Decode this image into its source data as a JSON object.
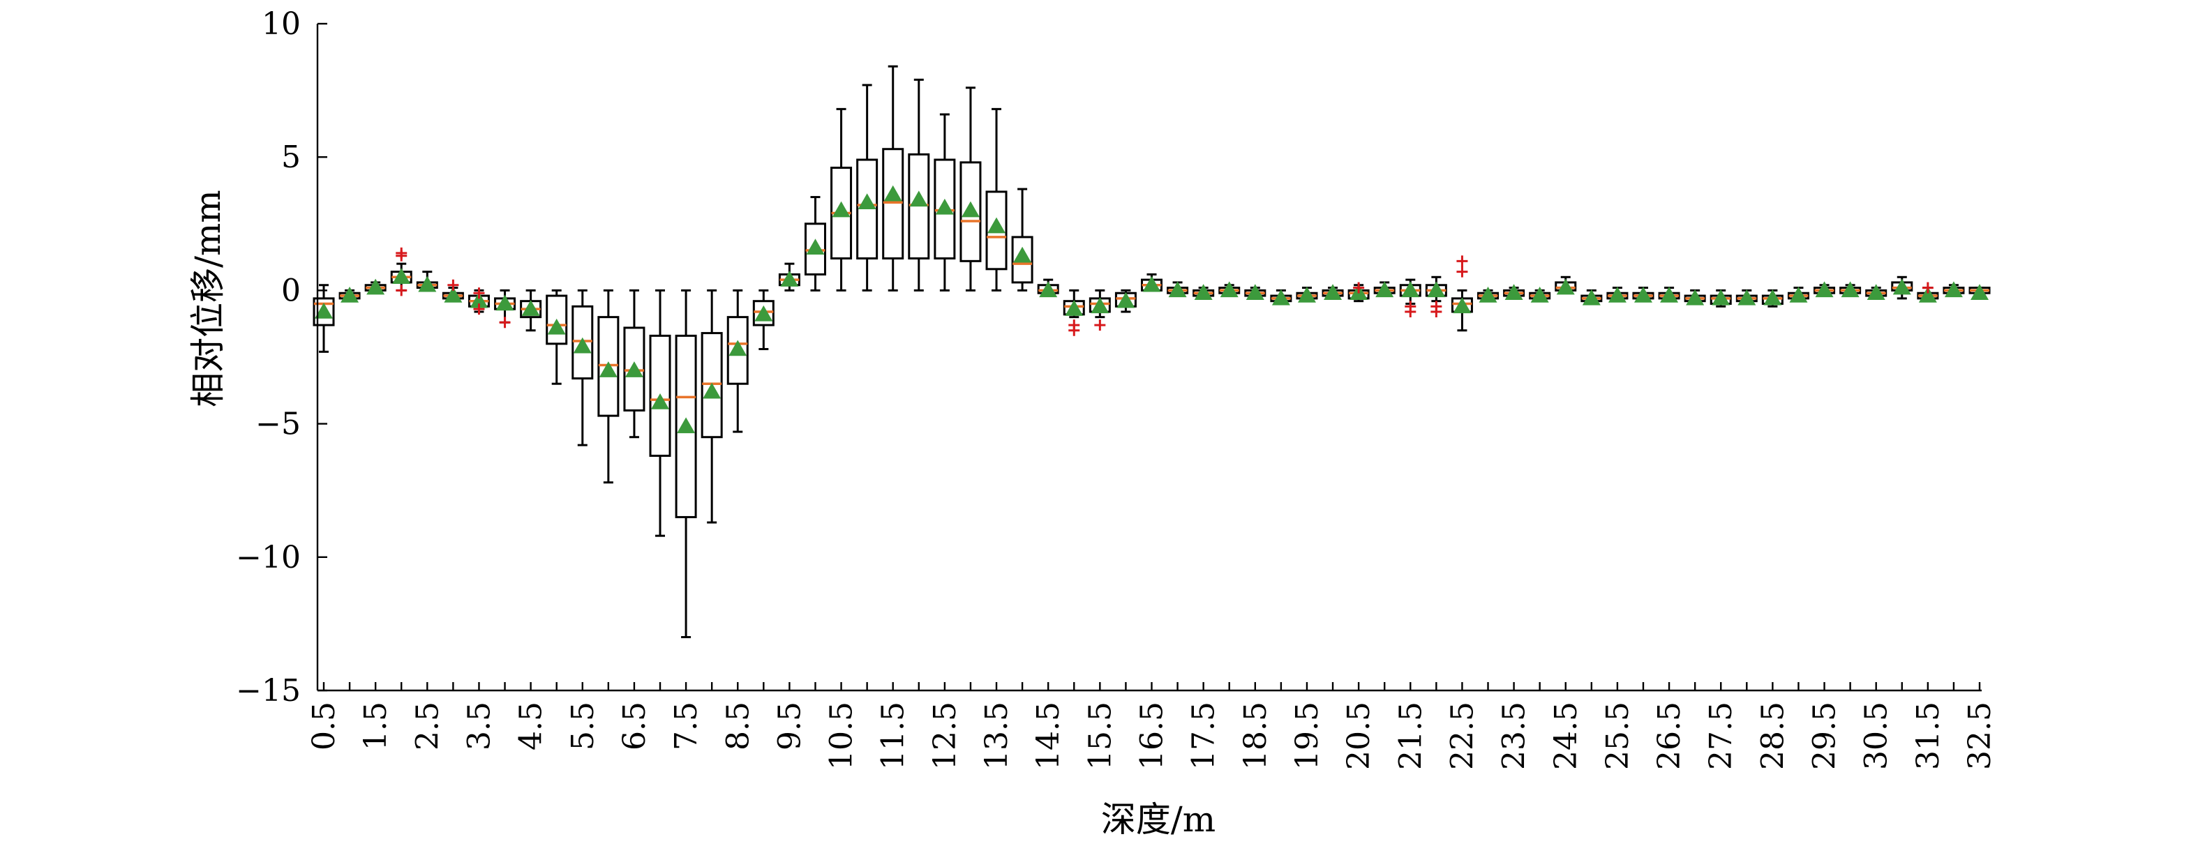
{
  "chart_data": {
    "type": "box",
    "xlabel": "深度/m",
    "ylabel": "相对位移/mm",
    "ylim": [
      -15,
      10
    ],
    "yticks": [
      10,
      5,
      0,
      -5,
      -10,
      -15
    ],
    "ytick_labels": [
      "10",
      "5",
      "0",
      "−5",
      "−10",
      "−15"
    ],
    "xtick_labels": [
      "0.5",
      "1.5",
      "2.5",
      "3.5",
      "4.5",
      "5.5",
      "6.5",
      "7.5",
      "8.5",
      "9.5",
      "10.5",
      "11.5",
      "12.5",
      "13.5",
      "14.5",
      "15.5",
      "16.5",
      "17.5",
      "18.5",
      "19.5",
      "20.5",
      "21.5",
      "22.5",
      "23.5",
      "24.5",
      "25.5",
      "26.5",
      "27.5",
      "28.5",
      "29.5",
      "30.5",
      "31.5",
      "32.5"
    ],
    "depths": [
      0.5,
      1.0,
      1.5,
      2.0,
      2.5,
      3.0,
      3.5,
      4.0,
      4.5,
      5.0,
      5.5,
      6.0,
      6.5,
      7.0,
      7.5,
      8.0,
      8.5,
      9.0,
      9.5,
      10.0,
      10.5,
      11.0,
      11.5,
      12.0,
      12.5,
      13.0,
      13.5,
      14.0,
      14.5,
      15.0,
      15.5,
      16.0,
      16.5,
      17.0,
      17.5,
      18.0,
      18.5,
      19.0,
      19.5,
      20.0,
      20.5,
      21.0,
      21.5,
      22.0,
      22.5,
      23.0,
      23.5,
      24.0,
      24.5,
      25.0,
      25.5,
      26.0,
      26.5,
      27.0,
      27.5,
      28.0,
      28.5,
      29.0,
      29.5,
      30.0,
      30.5,
      31.0,
      31.5,
      32.0,
      32.5
    ],
    "whisker_low": [
      -2.3,
      -0.4,
      0.0,
      0.0,
      0.0,
      -0.4,
      -0.8,
      -1.2,
      -1.5,
      -3.5,
      -5.8,
      -7.2,
      -5.5,
      -9.2,
      -13.0,
      -8.7,
      -5.3,
      -2.2,
      0.0,
      0.0,
      0.0,
      0.0,
      0.0,
      0.0,
      0.0,
      0.0,
      0.0,
      0.0,
      -0.2,
      -1.0,
      -1.0,
      -0.8,
      0.0,
      -0.2,
      -0.3,
      -0.1,
      -0.3,
      -0.5,
      -0.4,
      -0.3,
      -0.4,
      -0.2,
      -0.5,
      -0.4,
      -1.5,
      -0.4,
      -0.3,
      -0.4,
      -0.1,
      -0.5,
      -0.4,
      -0.4,
      -0.4,
      -0.5,
      -0.6,
      -0.5,
      -0.6,
      -0.4,
      -0.2,
      -0.2,
      -0.3,
      -0.3,
      -0.4,
      -0.2,
      -0.2
    ],
    "q1": [
      -1.3,
      -0.3,
      0.0,
      0.3,
      0.1,
      -0.3,
      -0.6,
      -0.7,
      -1.0,
      -2.0,
      -3.3,
      -4.7,
      -4.5,
      -6.2,
      -8.5,
      -5.5,
      -3.5,
      -1.3,
      0.2,
      0.6,
      1.2,
      1.2,
      1.2,
      1.2,
      1.2,
      1.1,
      0.8,
      0.3,
      -0.1,
      -0.9,
      -0.8,
      -0.6,
      0.0,
      -0.1,
      -0.2,
      -0.1,
      -0.2,
      -0.4,
      -0.3,
      -0.2,
      -0.3,
      -0.1,
      -0.2,
      -0.2,
      -0.8,
      -0.3,
      -0.2,
      -0.3,
      0.0,
      -0.4,
      -0.3,
      -0.3,
      -0.3,
      -0.4,
      -0.5,
      -0.4,
      -0.5,
      -0.3,
      -0.1,
      -0.1,
      -0.2,
      0.0,
      -0.3,
      -0.1,
      -0.1
    ],
    "median": [
      -0.5,
      -0.2,
      0.1,
      0.5,
      0.2,
      -0.2,
      -0.4,
      -0.5,
      -0.7,
      -1.3,
      -1.9,
      -2.8,
      -3.0,
      -4.1,
      -4.0,
      -3.5,
      -2.0,
      -0.8,
      0.4,
      1.5,
      2.9,
      3.2,
      3.3,
      3.2,
      3.0,
      2.6,
      2.0,
      1.0,
      0.0,
      -0.6,
      -0.5,
      -0.3,
      0.2,
      0.0,
      -0.1,
      0.0,
      -0.1,
      -0.3,
      -0.2,
      -0.1,
      -0.1,
      0.0,
      0.0,
      0.0,
      -0.5,
      -0.2,
      -0.1,
      -0.2,
      0.1,
      -0.3,
      -0.2,
      -0.2,
      -0.2,
      -0.3,
      -0.3,
      -0.3,
      -0.3,
      -0.2,
      0.0,
      0.0,
      -0.1,
      0.1,
      -0.2,
      0.0,
      0.0
    ],
    "q3": [
      -0.3,
      -0.1,
      0.2,
      0.7,
      0.3,
      -0.1,
      -0.2,
      -0.3,
      -0.4,
      -0.2,
      -0.6,
      -1.0,
      -1.4,
      -1.7,
      -1.7,
      -1.6,
      -1.0,
      -0.4,
      0.6,
      2.5,
      4.6,
      4.9,
      5.3,
      5.1,
      4.9,
      4.8,
      3.7,
      2.0,
      0.2,
      -0.4,
      -0.3,
      -0.1,
      0.4,
      0.1,
      0.0,
      0.1,
      0.0,
      -0.2,
      -0.1,
      0.0,
      0.0,
      0.1,
      0.2,
      0.2,
      -0.3,
      -0.1,
      0.0,
      -0.1,
      0.3,
      -0.2,
      -0.1,
      -0.1,
      -0.1,
      -0.2,
      -0.2,
      -0.2,
      -0.2,
      -0.1,
      0.1,
      0.1,
      0.0,
      0.3,
      -0.1,
      0.1,
      0.1
    ],
    "whisker_high": [
      0.2,
      0.0,
      0.3,
      1.0,
      0.7,
      0.1,
      0.0,
      0.0,
      0.0,
      0.0,
      0.0,
      0.0,
      0.0,
      0.0,
      0.0,
      0.0,
      0.0,
      0.0,
      1.0,
      3.5,
      6.8,
      7.7,
      8.4,
      7.9,
      6.6,
      7.6,
      6.8,
      3.8,
      0.4,
      0.0,
      0.0,
      0.0,
      0.6,
      0.3,
      0.1,
      0.2,
      0.1,
      0.0,
      0.1,
      0.1,
      0.2,
      0.3,
      0.4,
      0.5,
      0.0,
      0.0,
      0.1,
      0.0,
      0.5,
      0.0,
      0.1,
      0.1,
      0.1,
      0.0,
      0.0,
      0.0,
      0.0,
      0.1,
      0.2,
      0.2,
      0.1,
      0.5,
      0.1,
      0.2,
      0.1
    ],
    "mean": [
      -0.8,
      -0.2,
      0.1,
      0.5,
      0.2,
      -0.2,
      -0.4,
      -0.5,
      -0.7,
      -1.4,
      -2.1,
      -3.0,
      -3.0,
      -4.2,
      -5.1,
      -3.8,
      -2.2,
      -0.9,
      0.4,
      1.6,
      3.0,
      3.3,
      3.6,
      3.4,
      3.1,
      3.0,
      2.4,
      1.3,
      0.0,
      -0.7,
      -0.6,
      -0.4,
      0.2,
      0.0,
      -0.1,
      0.0,
      -0.1,
      -0.3,
      -0.2,
      -0.1,
      -0.1,
      0.0,
      0.0,
      0.0,
      -0.6,
      -0.2,
      -0.1,
      -0.2,
      0.1,
      -0.3,
      -0.2,
      -0.2,
      -0.2,
      -0.3,
      -0.3,
      -0.3,
      -0.3,
      -0.2,
      0.0,
      0.0,
      -0.1,
      0.1,
      -0.2,
      0.0,
      -0.1
    ],
    "outliers": [
      {
        "depth": 2.0,
        "values": [
          1.4,
          1.3,
          0.0
        ]
      },
      {
        "depth": 3.0,
        "values": [
          0.2
        ]
      },
      {
        "depth": 3.5,
        "values": [
          -0.7,
          -0.1
        ]
      },
      {
        "depth": 4.0,
        "values": [
          -1.2
        ]
      },
      {
        "depth": 15.0,
        "values": [
          -1.5,
          -1.3
        ]
      },
      {
        "depth": 15.5,
        "values": [
          -1.3
        ]
      },
      {
        "depth": 20.5,
        "values": [
          0.1
        ]
      },
      {
        "depth": 21.5,
        "values": [
          -0.6,
          -0.8
        ]
      },
      {
        "depth": 22.0,
        "values": [
          -0.6,
          -0.8
        ]
      },
      {
        "depth": 22.5,
        "values": [
          1.1,
          0.7
        ]
      },
      {
        "depth": 31.5,
        "values": [
          0.1
        ]
      }
    ],
    "colors": {
      "median": "#E8742A",
      "mean": "#3C9A3C",
      "outlier": "#D7191C",
      "box": "#000000"
    },
    "grid": false,
    "legend": "none"
  }
}
